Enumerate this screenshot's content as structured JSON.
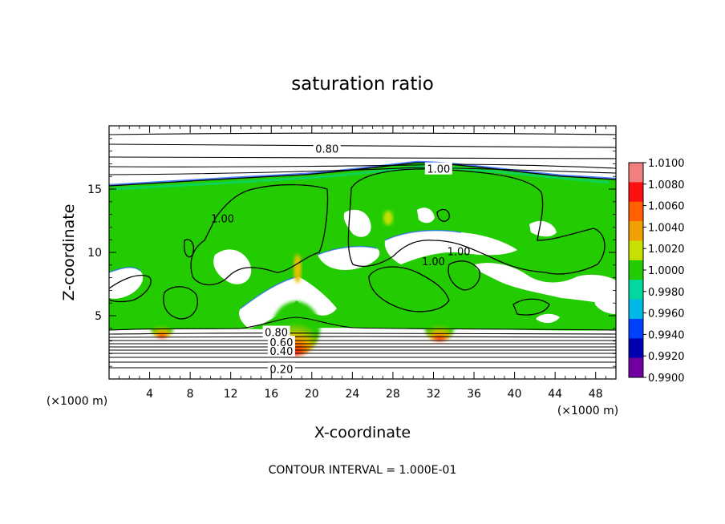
{
  "chart_data": {
    "type": "heatmap",
    "title": "saturation ratio",
    "xlabel": "X-coordinate",
    "ylabel": "Z-coordinate",
    "x_unit_label": "(×1000 m)",
    "z_unit_label": "(×1000 m)",
    "xlim": [
      0,
      50
    ],
    "ylim": [
      0,
      20
    ],
    "x_ticks": [
      "4",
      "8",
      "12",
      "16",
      "20",
      "24",
      "28",
      "32",
      "36",
      "40",
      "44",
      "48"
    ],
    "y_ticks": [
      "5",
      "10",
      "15"
    ],
    "footer": "CONTOUR INTERVAL = 1.000E-01",
    "colorbar": {
      "labels": [
        "1.0100",
        "1.0080",
        "1.0060",
        "1.0040",
        "1.0020",
        "1.0000",
        "0.9980",
        "0.9960",
        "0.9940",
        "0.9920",
        "0.9900"
      ],
      "colors": [
        "#f08080",
        "#ff1010",
        "#ff6000",
        "#f0a000",
        "#c8e000",
        "#22cc00",
        "#00d8a0",
        "#00b8e8",
        "#0040ff",
        "#0000b0",
        "#7000a0"
      ]
    },
    "contour_labels": [
      {
        "text": "0.80",
        "x": 21.5,
        "z": 18.2
      },
      {
        "text": "1.00",
        "x": 32.5,
        "z": 16.6
      },
      {
        "text": "1.00",
        "x": 11.2,
        "z": 12.7
      },
      {
        "text": "1.00",
        "x": 34.5,
        "z": 10.1
      },
      {
        "text": "1.00",
        "x": 32.0,
        "z": 9.3
      },
      {
        "text": "0.80",
        "x": 16.5,
        "z": 3.7
      },
      {
        "text": "0.60",
        "x": 17.0,
        "z": 2.9
      },
      {
        "text": "0.40",
        "x": 17.0,
        "z": 2.2
      },
      {
        "text": "0.20",
        "x": 17.0,
        "z": 0.8
      }
    ]
  }
}
